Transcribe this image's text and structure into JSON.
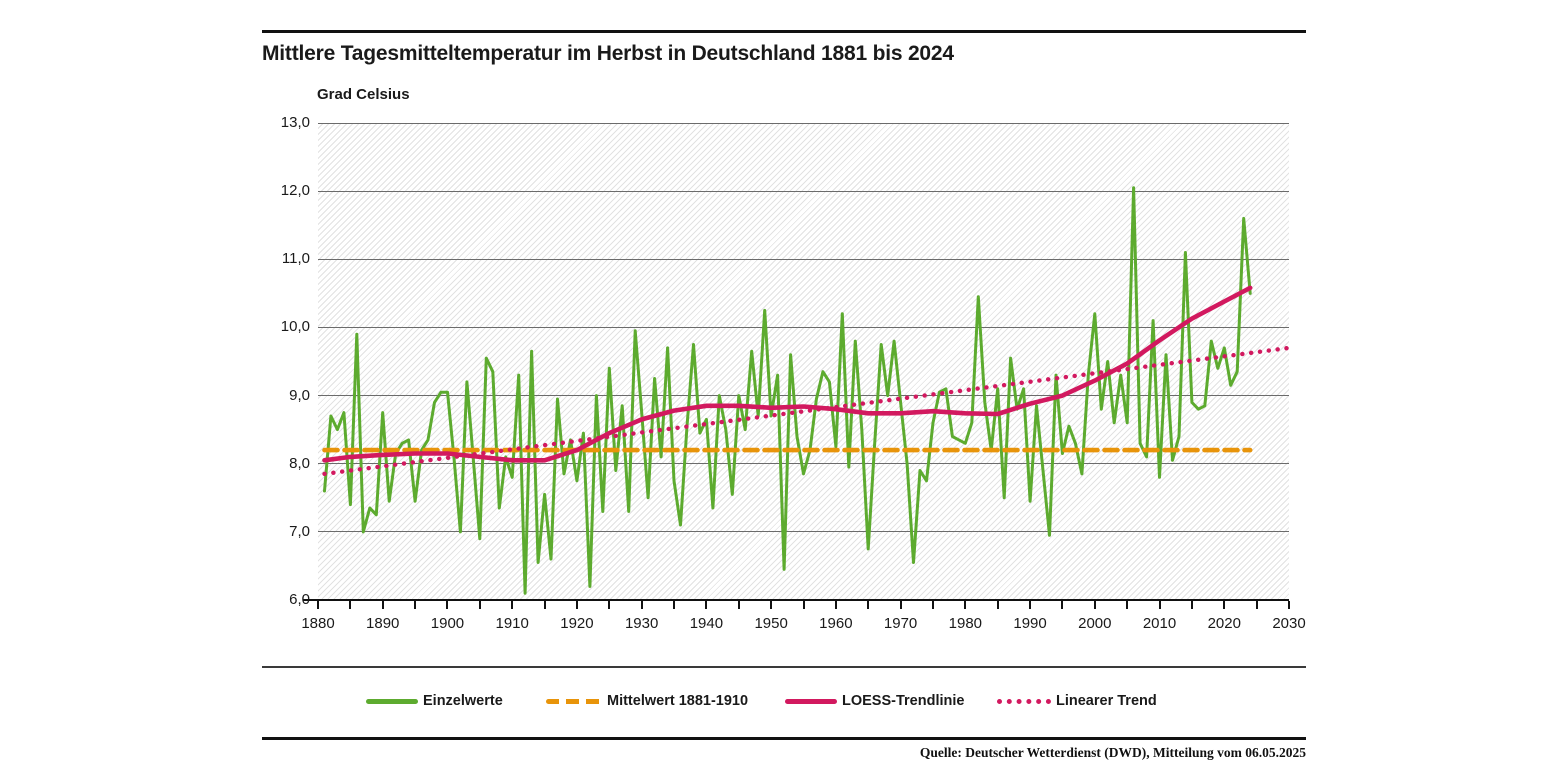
{
  "header": {
    "title": "Mittlere Tagesmitteltemperatur im Herbst in Deutschland 1881 bis 2024",
    "y_axis_title": "Grad Celsius"
  },
  "source_note": "Quelle: Deutscher Wetterdienst (DWD), Mitteilung vom 06.05.2025",
  "colors": {
    "einzelwerte": "#5dab2f",
    "mittelwert": "#e8940a",
    "loess": "#d2195f",
    "linear_trend": "#d2195f",
    "gridline": "#6b6b6b",
    "axis": "#111111",
    "text": "#1a1a1a"
  },
  "legend": [
    {
      "id": "einzelwerte",
      "label": "Einzelwerte",
      "style": "solid",
      "color": "#5dab2f",
      "x": 366
    },
    {
      "id": "mittelwert",
      "label": "Mittelwert 1881-1910",
      "style": "dashed",
      "color": "#e8940a",
      "x": 546
    },
    {
      "id": "loess",
      "label": "LOESS-Trendlinie",
      "style": "solid",
      "color": "#d2195f",
      "x": 785
    },
    {
      "id": "linear-trend",
      "label": "Linearer Trend",
      "style": "dotted",
      "color": "#d2195f",
      "x": 997
    }
  ],
  "chart_data": {
    "type": "line",
    "title": "Mittlere Tagesmitteltemperatur im Herbst in Deutschland 1881 bis 2024",
    "xlabel": "",
    "ylabel": "Grad Celsius",
    "xlim": [
      1880,
      2030
    ],
    "ylim": [
      6.0,
      13.0
    ],
    "grid": true,
    "legend_position": "bottom",
    "y_tick_labels": [
      "13,0",
      "12,0",
      "11,0",
      "10,0",
      "9,0",
      "8,0",
      "7,0",
      "6,0"
    ],
    "y_tick_values": [
      13,
      12,
      11,
      10,
      9,
      8,
      7,
      6
    ],
    "x_tick_labels": [
      "1880",
      "1890",
      "1900",
      "1910",
      "1920",
      "1930",
      "1940",
      "1950",
      "1960",
      "1970",
      "1980",
      "1990",
      "2000",
      "2010",
      "2020",
      "2030"
    ],
    "x_minor_tick_step": 5,
    "series": [
      {
        "name": "Einzelwerte",
        "type": "line",
        "color": "#5dab2f",
        "start_year": 1881,
        "values": [
          7.6,
          8.7,
          8.5,
          8.75,
          7.4,
          9.9,
          7.0,
          7.35,
          7.25,
          8.75,
          7.45,
          8.15,
          8.3,
          8.35,
          7.45,
          8.2,
          8.35,
          8.9,
          9.05,
          9.05,
          8.1,
          7.0,
          9.2,
          8.05,
          6.9,
          9.55,
          9.35,
          7.35,
          8.1,
          7.8,
          9.3,
          6.1,
          9.65,
          6.55,
          7.55,
          6.6,
          8.95,
          7.85,
          8.35,
          7.75,
          8.45,
          6.2,
          9.0,
          7.3,
          9.4,
          7.9,
          8.85,
          7.3,
          9.95,
          8.75,
          7.5,
          9.25,
          8.1,
          9.7,
          7.75,
          7.1,
          8.55,
          9.75,
          8.45,
          8.65,
          7.35,
          9.0,
          8.5,
          7.55,
          9.0,
          8.5,
          9.65,
          8.7,
          10.25,
          8.7,
          9.3,
          6.45,
          9.6,
          8.4,
          7.85,
          8.2,
          8.95,
          9.35,
          9.2,
          8.25,
          10.2,
          7.95,
          9.8,
          8.5,
          6.75,
          8.3,
          9.75,
          9.0,
          9.8,
          8.9,
          8.0,
          6.55,
          7.9,
          7.75,
          8.6,
          9.05,
          9.1,
          8.4,
          8.35,
          8.3,
          8.6,
          10.45,
          8.9,
          8.2,
          9.1,
          7.5,
          9.55,
          8.8,
          9.1,
          7.45,
          8.85,
          7.9,
          6.95,
          9.3,
          8.15,
          8.55,
          8.3,
          7.85,
          9.3,
          10.2,
          8.8,
          9.5,
          8.6,
          9.3,
          8.6,
          12.05,
          8.3,
          8.1,
          10.1,
          7.8,
          9.6,
          8.05,
          8.4,
          11.1,
          8.9,
          8.8,
          8.85,
          9.8,
          9.4,
          9.7,
          9.15,
          9.35,
          11.6,
          10.5
        ]
      },
      {
        "name": "Mittelwert 1881-1910",
        "type": "dashed-line",
        "color": "#e8940a",
        "value": 8.2,
        "x_range": [
          1881,
          2024
        ]
      },
      {
        "name": "LOESS-Trendlinie",
        "type": "smooth-line",
        "color": "#d2195f",
        "x": [
          1881,
          1885,
          1890,
          1895,
          1900,
          1905,
          1910,
          1915,
          1920,
          1925,
          1930,
          1935,
          1940,
          1945,
          1950,
          1955,
          1960,
          1965,
          1970,
          1975,
          1980,
          1985,
          1990,
          1995,
          2000,
          2005,
          2010,
          2015,
          2020,
          2024
        ],
        "values": [
          8.05,
          8.1,
          8.13,
          8.15,
          8.15,
          8.1,
          8.05,
          8.05,
          8.2,
          8.45,
          8.65,
          8.78,
          8.85,
          8.85,
          8.82,
          8.84,
          8.8,
          8.74,
          8.74,
          8.77,
          8.74,
          8.73,
          8.88,
          9.0,
          9.22,
          9.47,
          9.81,
          10.13,
          10.38,
          10.58
        ]
      },
      {
        "name": "Linearer Trend",
        "type": "dotted-line",
        "color": "#d2195f",
        "x_range": [
          1881,
          2030
        ],
        "y_range": [
          7.85,
          9.7
        ]
      }
    ]
  }
}
